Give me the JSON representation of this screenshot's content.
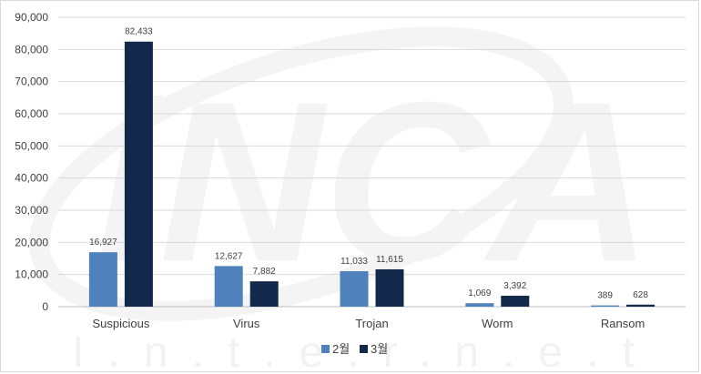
{
  "chart_data": {
    "type": "bar",
    "title": "",
    "xlabel": "",
    "ylabel": "",
    "categories": [
      "Suspicious",
      "Virus",
      "Trojan",
      "Worm",
      "Ransom"
    ],
    "series": [
      {
        "name": "2월",
        "color": "#4f81bd",
        "values": [
          16927,
          12627,
          11033,
          1069,
          389
        ]
      },
      {
        "name": "3월",
        "color": "#13294b",
        "values": [
          82433,
          7882,
          11615,
          3392,
          628
        ]
      }
    ],
    "data_labels": [
      [
        "16,927",
        "12,627",
        "11,033",
        "1,069",
        "389"
      ],
      [
        "82,433",
        "7,882",
        "11,615",
        "3,392",
        "628"
      ]
    ],
    "ylim": [
      0,
      90000
    ],
    "yticks": [
      0,
      10000,
      20000,
      30000,
      40000,
      50000,
      60000,
      70000,
      80000,
      90000
    ],
    "ytick_labels": [
      "0",
      "10,000",
      "20,000",
      "30,000",
      "40,000",
      "50,000",
      "60,000",
      "70,000",
      "80,000",
      "90,000"
    ],
    "grid": true,
    "legend_position": "bottom",
    "watermark": {
      "logo_text": "iNCA",
      "text": "I.n.t.e.r.n.e.t"
    }
  }
}
